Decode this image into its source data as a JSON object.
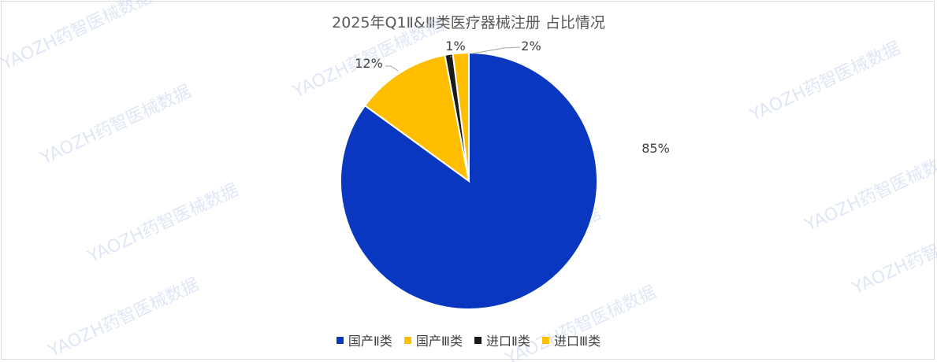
{
  "chart_data": {
    "type": "pie",
    "title": "2025年Q1Ⅱ&Ⅲ类医疗器械注册 占比情况",
    "slices": [
      {
        "label": "国产Ⅱ类",
        "value": 85,
        "display": "85%",
        "color": "#0a37bf"
      },
      {
        "label": "国产Ⅲ类",
        "value": 12,
        "display": "12%",
        "color": "#ffbf00"
      },
      {
        "label": "进口Ⅱ类",
        "value": 1,
        "display": "1%",
        "color": "#1a1a1a"
      },
      {
        "label": "进口Ⅲ类",
        "value": 2,
        "display": "2%",
        "color": "#ffbf00"
      }
    ],
    "legend_position": "bottom"
  },
  "watermark": "YAOZH药智医械数据"
}
